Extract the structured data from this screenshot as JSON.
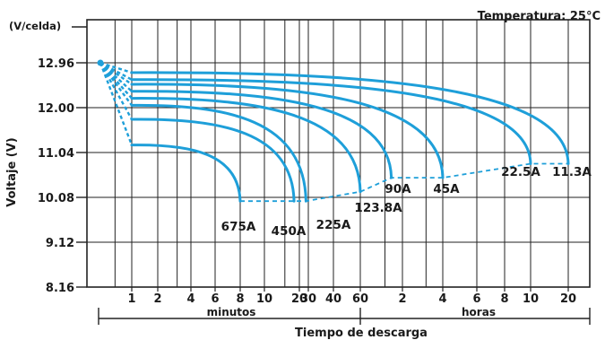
{
  "chart_data": {
    "type": "line",
    "title": "Temperatura: 25°C",
    "y_unit_label": "(V/celda)",
    "ylabel": "Voltaje (V)",
    "xlabel": "Tiempo de descarga",
    "x_group_minutes": "minutos",
    "x_group_hours": "horas",
    "y_ticks": [
      "12.96",
      "12.00",
      "11.04",
      "10.08",
      "9.12",
      "8.16"
    ],
    "ylim": [
      8.16,
      13.2
    ],
    "x_tick_labels_minutes": [
      "1",
      "2",
      "4",
      "6",
      "8",
      "10",
      "20",
      "30",
      "40",
      "60"
    ],
    "x_tick_labels_hours": [
      "2",
      "4",
      "6",
      "8",
      "10",
      "20"
    ],
    "x_scale": "log (time)",
    "grid": true,
    "start_voltage": 12.96,
    "curve_color": "#1e9fd9",
    "endpoint_line_style": "dashed",
    "series": [
      {
        "name": "675A",
        "start_voltage": 11.2,
        "end_time_min": 8,
        "end_voltage": 10.0
      },
      {
        "name": "450A",
        "start_voltage": 11.75,
        "end_time_min": 18,
        "end_voltage": 10.0
      },
      {
        "name": "225A",
        "start_voltage": 12.05,
        "end_time_min": 27,
        "end_voltage": 10.0
      },
      {
        "name": "123.8A",
        "start_voltage": 12.2,
        "end_time_min": 60,
        "end_voltage": 10.2
      },
      {
        "name": "90A",
        "start_voltage": 12.35,
        "end_time_min": 100,
        "end_voltage": 10.5
      },
      {
        "name": "45A",
        "start_voltage": 12.5,
        "end_time_min": 240,
        "end_voltage": 10.5
      },
      {
        "name": "22.5A",
        "start_voltage": 12.6,
        "end_time_min": 600,
        "end_voltage": 10.8
      },
      {
        "name": "11.3A",
        "start_voltage": 12.75,
        "end_time_min": 1200,
        "end_voltage": 10.8
      }
    ]
  }
}
